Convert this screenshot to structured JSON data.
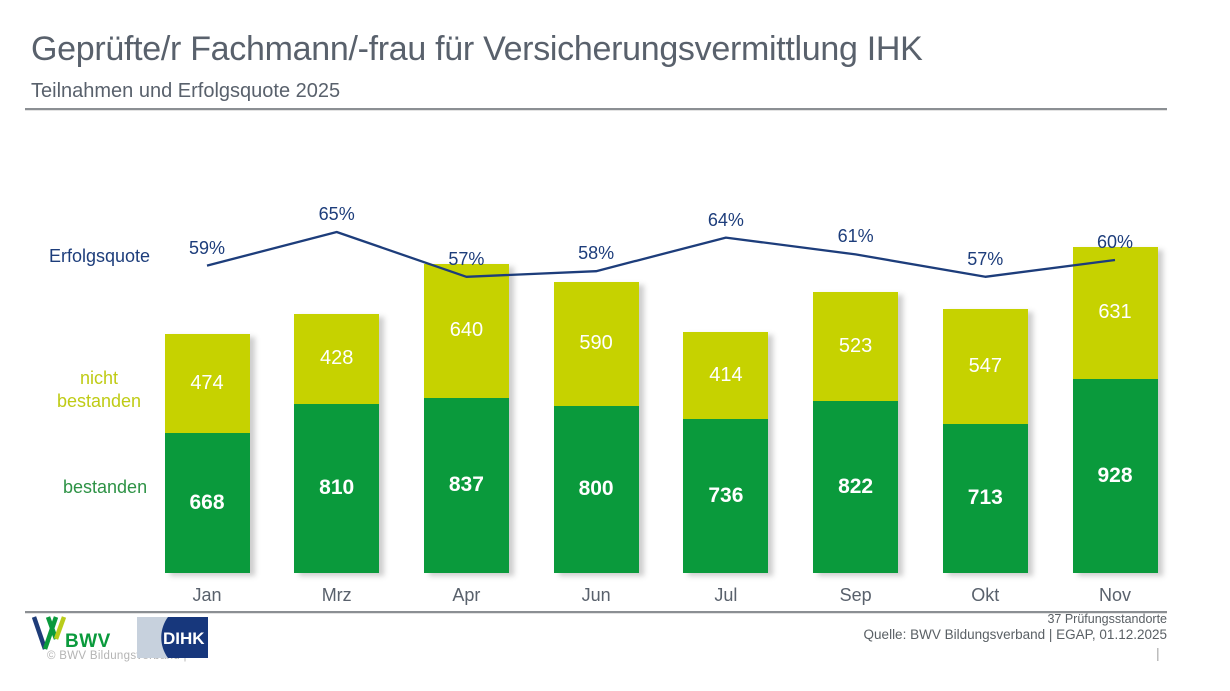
{
  "header": {
    "title": "Geprüfte/r Fachmann/-frau für Versicherungsvermittlung IHK",
    "subtitle": "Teilnahmen und Erfolgsquote 2025"
  },
  "chart_data": {
    "type": "bar",
    "subtype": "stacked-columns-with-line-overlay",
    "title": "Geprüfte/r Fachmann/-frau für Versicherungsvermittlung IHK",
    "subtitle": "Teilnahmen und Erfolgsquote 2025",
    "categories": [
      "Jan",
      "Mrz",
      "Apr",
      "Jun",
      "Jul",
      "Sep",
      "Okt",
      "Nov"
    ],
    "series": [
      {
        "name": "bestanden",
        "color": "#0a9a3c",
        "values": [
          668,
          810,
          837,
          800,
          736,
          822,
          713,
          928
        ]
      },
      {
        "name": "nicht bestanden",
        "color": "#c6d200",
        "values": [
          474,
          428,
          640,
          590,
          414,
          523,
          547,
          631
        ]
      }
    ],
    "line": {
      "name": "Erfolgsquote",
      "color": "#1d3d7b",
      "unit": "%",
      "values": [
        59,
        65,
        57,
        58,
        64,
        61,
        57,
        60
      ]
    },
    "value_label_color": "#ffffff",
    "legend_position": "left",
    "grid": false,
    "xlabel": "",
    "ylabel": ""
  },
  "footer": {
    "bwv_logo_text": "BWV",
    "dihk_logo_text": "DIHK",
    "copyright": "©  BWV Bildungsverband  |",
    "locations_note": "37 Prüfungsstandorte",
    "source": "Quelle: BWV Bildungsverband | EGAP, 01.12.2025",
    "page_separator": "|"
  }
}
